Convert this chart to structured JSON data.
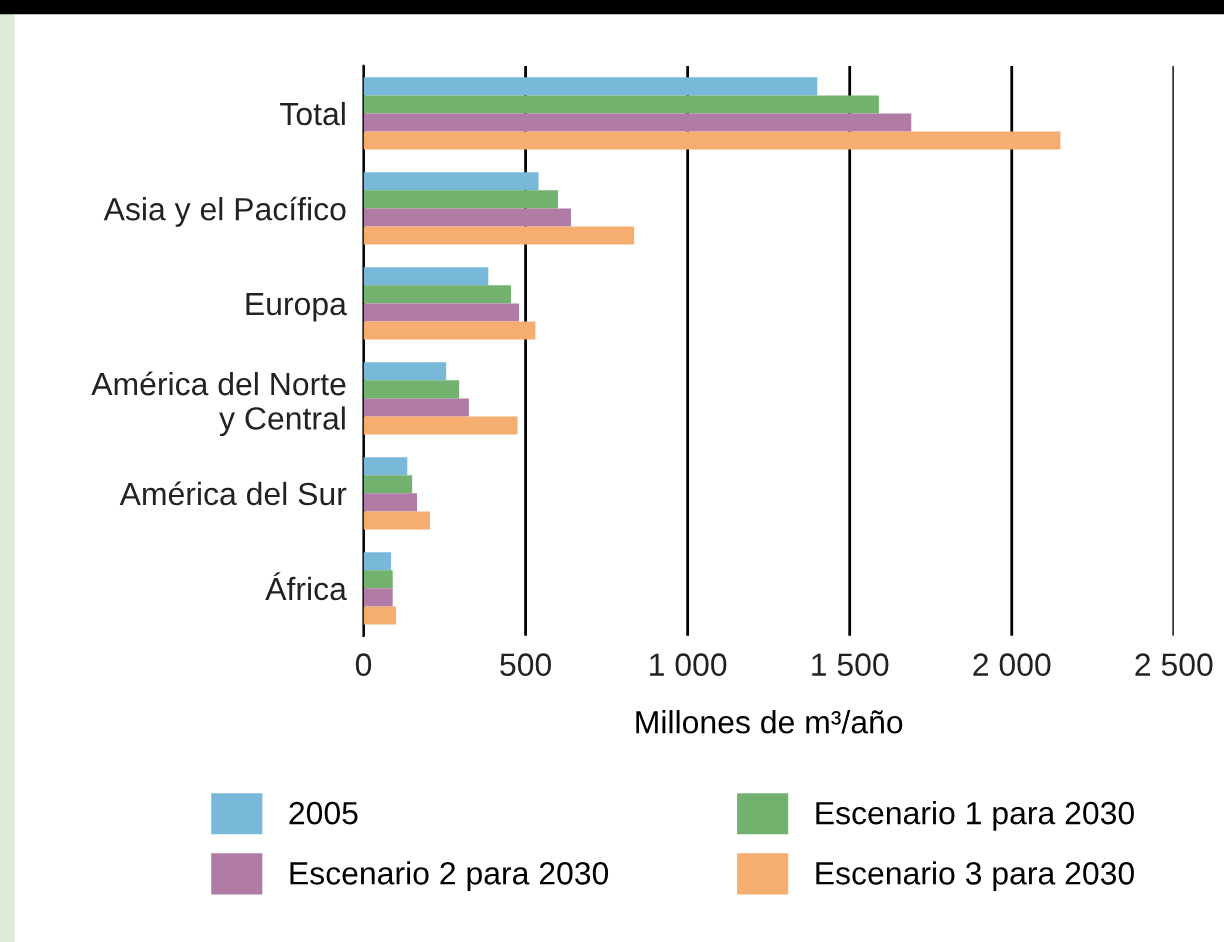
{
  "chart_data": {
    "type": "bar",
    "orientation": "horizontal",
    "categories": [
      "Total",
      "Asia y el Pacífico",
      "Europa",
      "América del Norte\ny Central",
      "América del Sur",
      "África"
    ],
    "series": [
      {
        "name": "2005",
        "color": "#78b9da",
        "values": [
          1400,
          540,
          385,
          255,
          135,
          85
        ]
      },
      {
        "name": "Escenario 1 para 2030",
        "color": "#72b26e",
        "values": [
          1590,
          600,
          455,
          295,
          150,
          90
        ]
      },
      {
        "name": "Escenario 2 para 2030",
        "color": "#b07ca6",
        "values": [
          1690,
          640,
          480,
          325,
          165,
          90
        ]
      },
      {
        "name": "Escenario 3 para 2030",
        "color": "#f5ad70",
        "values": [
          2150,
          835,
          530,
          475,
          205,
          100
        ]
      }
    ],
    "xlabel": "Millones de m³/año",
    "xlim": [
      0,
      2500
    ],
    "xticks": [
      0,
      500,
      {
        "value": 1000,
        "label": "1 000"
      },
      {
        "value": 1500,
        "label": "1 500"
      },
      {
        "value": 2000,
        "label": "2 000"
      },
      {
        "value": 2500,
        "label": "2 500"
      }
    ],
    "grid": "x",
    "legend": "bottom"
  }
}
